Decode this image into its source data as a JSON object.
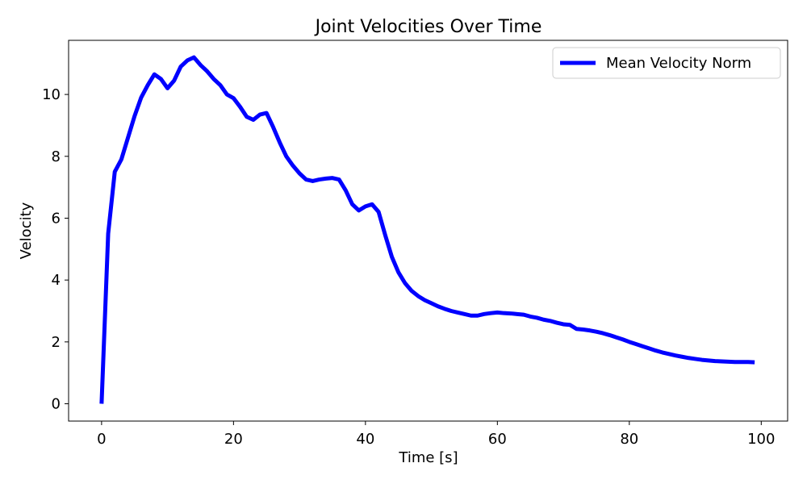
{
  "chart_data": {
    "type": "line",
    "title": "Joint Velocities Over Time",
    "xlabel": "Time [s]",
    "ylabel": "Velocity",
    "xlim": [
      -5,
      104
    ],
    "ylim": [
      -0.56,
      11.75
    ],
    "xticks": [
      0,
      20,
      40,
      60,
      80,
      100
    ],
    "yticks": [
      0,
      2,
      4,
      6,
      8,
      10
    ],
    "grid": false,
    "legend_position": "top-right",
    "series": [
      {
        "name": "Mean Velocity Norm",
        "color": "#0000ff",
        "x": [
          0,
          1,
          2,
          3,
          4,
          5,
          6,
          7,
          8,
          9,
          10,
          11,
          12,
          13,
          14,
          15,
          16,
          17,
          18,
          19,
          20,
          21,
          22,
          23,
          24,
          25,
          26,
          27,
          28,
          29,
          30,
          31,
          32,
          33,
          34,
          35,
          36,
          37,
          38,
          39,
          40,
          41,
          42,
          43,
          44,
          45,
          46,
          47,
          48,
          49,
          50,
          51,
          52,
          53,
          54,
          55,
          56,
          57,
          58,
          59,
          60,
          61,
          62,
          63,
          64,
          65,
          66,
          67,
          68,
          69,
          70,
          71,
          72,
          73,
          74,
          75,
          76,
          77,
          78,
          79,
          80,
          81,
          82,
          83,
          84,
          85,
          86,
          87,
          88,
          89,
          90,
          91,
          92,
          93,
          94,
          95,
          96,
          97,
          98,
          99
        ],
        "y": [
          0.0,
          5.5,
          7.5,
          7.9,
          8.6,
          9.3,
          9.9,
          10.3,
          10.65,
          10.5,
          10.2,
          10.45,
          10.9,
          11.1,
          11.2,
          10.95,
          10.75,
          10.5,
          10.3,
          10.0,
          9.88,
          9.6,
          9.28,
          9.18,
          9.35,
          9.4,
          8.95,
          8.45,
          8.0,
          7.7,
          7.45,
          7.25,
          7.2,
          7.25,
          7.28,
          7.3,
          7.25,
          6.9,
          6.45,
          6.25,
          6.38,
          6.45,
          6.2,
          5.45,
          4.75,
          4.25,
          3.9,
          3.65,
          3.48,
          3.35,
          3.25,
          3.15,
          3.07,
          3.0,
          2.95,
          2.9,
          2.85,
          2.85,
          2.9,
          2.93,
          2.95,
          2.93,
          2.92,
          2.9,
          2.88,
          2.82,
          2.78,
          2.72,
          2.68,
          2.62,
          2.57,
          2.55,
          2.42,
          2.4,
          2.37,
          2.33,
          2.28,
          2.22,
          2.15,
          2.08,
          2.0,
          1.93,
          1.86,
          1.79,
          1.72,
          1.66,
          1.61,
          1.56,
          1.52,
          1.48,
          1.45,
          1.42,
          1.4,
          1.38,
          1.37,
          1.36,
          1.35,
          1.35,
          1.35,
          1.34
        ]
      }
    ]
  }
}
